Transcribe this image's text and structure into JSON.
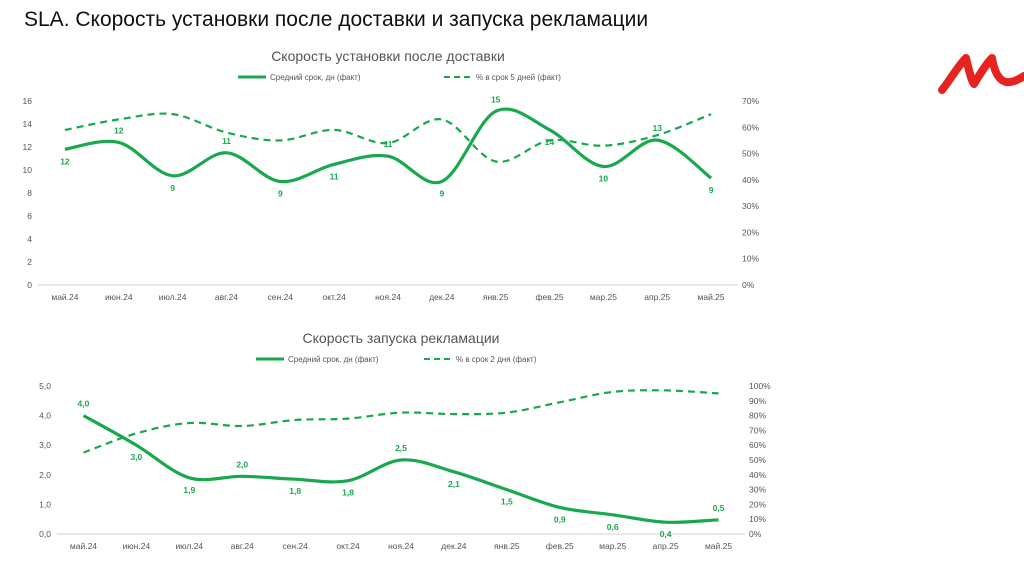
{
  "page": {
    "title": "SLA. Скорость установки после доставки и запуска рекламации",
    "logo_color": "#e52420",
    "line_color": "#1aa84e"
  },
  "chart_data": [
    {
      "type": "line",
      "title": "Скорость установки после доставки",
      "categories": [
        "май.24",
        "июн.24",
        "июл.24",
        "авг.24",
        "сен.24",
        "окт.24",
        "ноя.24",
        "дек.24",
        "янв.25",
        "фев.25",
        "мар.25",
        "апр.25",
        "май.25"
      ],
      "series": [
        {
          "name": "Средний срок, дн (факт)",
          "axis": "left",
          "style": "solid",
          "values": [
            12,
            12,
            9,
            11,
            9,
            11,
            11,
            9,
            15,
            14,
            10,
            13,
            9
          ],
          "plot_values": [
            11.8,
            12.4,
            9.5,
            11.5,
            9.0,
            10.5,
            11.2,
            9.0,
            15.1,
            13.5,
            10.3,
            12.6,
            9.3
          ],
          "labels": [
            "12",
            "12",
            "9",
            "11",
            "9",
            "11",
            "11",
            "9",
            "15",
            "14",
            "10",
            "13",
            "9"
          ]
        },
        {
          "name": "% в срок 5 дней (факт)",
          "axis": "right",
          "style": "dashed",
          "values": [
            0.59,
            0.63,
            0.65,
            0.58,
            0.55,
            0.59,
            0.54,
            0.63,
            0.47,
            0.55,
            0.53,
            0.57,
            0.65
          ]
        }
      ],
      "y_left": {
        "min": 0,
        "max": 16,
        "ticks": [
          "0",
          "2",
          "4",
          "6",
          "8",
          "10",
          "12",
          "14",
          "16"
        ]
      },
      "y_right": {
        "min": 0,
        "max": 0.7,
        "ticks": [
          "0%",
          "10%",
          "20%",
          "30%",
          "40%",
          "50%",
          "60%",
          "70%"
        ]
      }
    },
    {
      "type": "line",
      "title": "Скорость запуска рекламации",
      "categories": [
        "май.24",
        "июн.24",
        "июл.24",
        "авг.24",
        "сен.24",
        "окт.24",
        "ноя.24",
        "дек.24",
        "янв.25",
        "фев.25",
        "мар.25",
        "апр.25",
        "май.25"
      ],
      "series": [
        {
          "name": "Средний срок, дн (факт)",
          "axis": "left",
          "style": "solid",
          "values": [
            4.0,
            3.0,
            1.9,
            2.0,
            1.8,
            1.8,
            2.5,
            2.1,
            1.5,
            0.9,
            0.6,
            0.4,
            0.5
          ],
          "plot_values": [
            4.0,
            3.0,
            1.9,
            1.95,
            1.85,
            1.8,
            2.5,
            2.1,
            1.5,
            0.9,
            0.65,
            0.4,
            0.48
          ],
          "labels": [
            "4,0",
            "3,0",
            "1,9",
            "2,0",
            "1,8",
            "1,8",
            "2,5",
            "2,1",
            "1,5",
            "0,9",
            "0,6",
            "0,4",
            "0,5"
          ]
        },
        {
          "name": "% в срок 2 дня (факт)",
          "axis": "right",
          "style": "dashed",
          "values": [
            0.55,
            0.68,
            0.75,
            0.73,
            0.77,
            0.78,
            0.82,
            0.81,
            0.82,
            0.89,
            0.96,
            0.97,
            0.95
          ]
        }
      ],
      "y_left": {
        "min": 0,
        "max": 5,
        "ticks": [
          "0,0",
          "1,0",
          "2,0",
          "3,0",
          "4,0",
          "5,0"
        ]
      },
      "y_right": {
        "min": 0,
        "max": 1.0,
        "ticks": [
          "0%",
          "10%",
          "20%",
          "30%",
          "40%",
          "50%",
          "60%",
          "70%",
          "80%",
          "90%",
          "100%"
        ]
      }
    }
  ]
}
